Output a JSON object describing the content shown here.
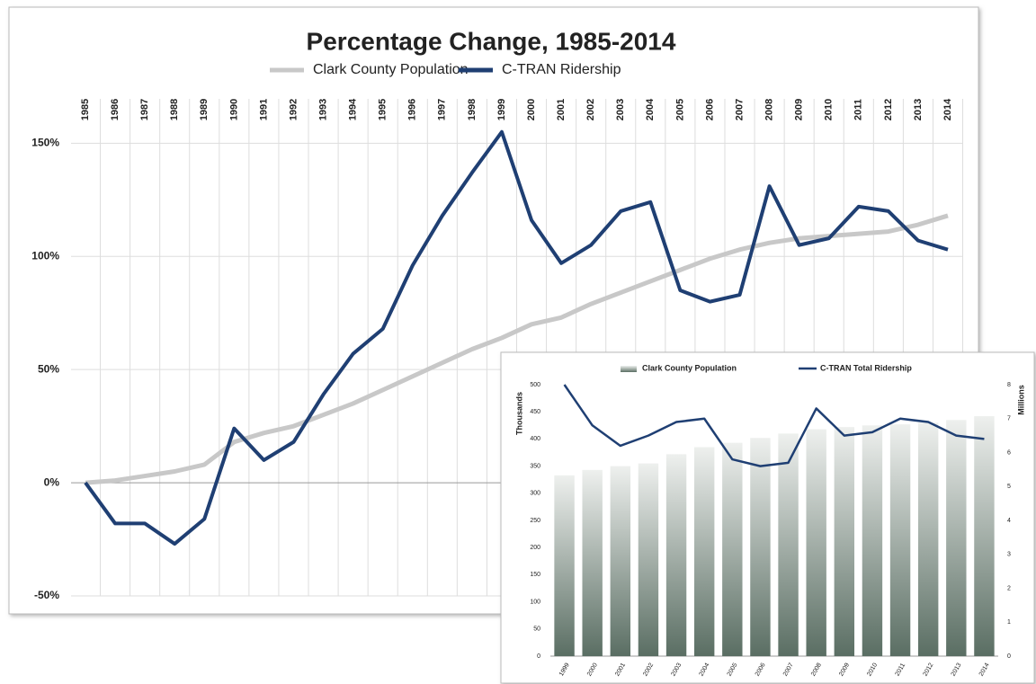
{
  "chart_data": [
    {
      "type": "line",
      "title": "Percentage Change, 1985-2014",
      "categories": [
        "1985",
        "1986",
        "1987",
        "1988",
        "1989",
        "1990",
        "1991",
        "1992",
        "1993",
        "1994",
        "1995",
        "1996",
        "1997",
        "1998",
        "1999",
        "2000",
        "2001",
        "2002",
        "2003",
        "2004",
        "2005",
        "2006",
        "2007",
        "2008",
        "2009",
        "2010",
        "2011",
        "2012",
        "2013",
        "2014"
      ],
      "series": [
        {
          "name": "Clark County Population",
          "color": "#c8c8c8",
          "values": [
            0,
            1,
            3,
            5,
            8,
            18,
            22,
            25,
            30,
            35,
            41,
            47,
            53,
            59,
            64,
            70,
            73,
            79,
            84,
            89,
            94,
            99,
            103,
            106,
            108,
            109,
            110,
            111,
            114,
            118
          ]
        },
        {
          "name": "C-TRAN Ridership",
          "color": "#1f3f73",
          "values": [
            0,
            -18,
            -18,
            -27,
            -16,
            24,
            10,
            18,
            39,
            57,
            68,
            96,
            118,
            137,
            155,
            116,
            97,
            105,
            120,
            124,
            85,
            80,
            83,
            131,
            105,
            108,
            122,
            120,
            107,
            103
          ]
        }
      ],
      "ylim": [
        -50,
        170
      ],
      "yticks": [
        {
          "value": -50,
          "label": "-50%"
        },
        {
          "value": 0,
          "label": "0%"
        },
        {
          "value": 50,
          "label": "50%"
        },
        {
          "value": 100,
          "label": "100%"
        },
        {
          "value": 150,
          "label": "150%"
        }
      ],
      "grid": true
    },
    {
      "type": "bar",
      "categories": [
        "1999",
        "2000",
        "2001",
        "2002",
        "2003",
        "2004",
        "2005",
        "2006",
        "2007",
        "2008",
        "2009",
        "2010",
        "2011",
        "2012",
        "2013",
        "2014"
      ],
      "series": [
        {
          "name": "Clark County Population",
          "type": "bar",
          "color": "#7f8f86",
          "values": [
            333,
            343,
            350,
            355,
            372,
            385,
            393,
            402,
            410,
            418,
            422,
            425,
            427,
            430,
            435,
            442
          ]
        },
        {
          "name": "C-TRAN Total Ridership",
          "type": "line",
          "axis": "y2",
          "color": "#1f3f73",
          "values": [
            8.0,
            6.8,
            6.2,
            6.5,
            6.9,
            7.0,
            5.8,
            5.6,
            5.7,
            7.3,
            6.5,
            6.6,
            7.0,
            6.9,
            6.5,
            6.4
          ]
        }
      ],
      "ylabel": "Thousands",
      "y2label": "Millions",
      "ylim": [
        0,
        500
      ],
      "yticks": [
        0,
        50,
        100,
        150,
        200,
        250,
        300,
        350,
        400,
        450,
        500
      ],
      "y2lim": [
        0,
        8
      ],
      "y2ticks": [
        0,
        1,
        2,
        3,
        4,
        5,
        6,
        7,
        8
      ]
    }
  ]
}
